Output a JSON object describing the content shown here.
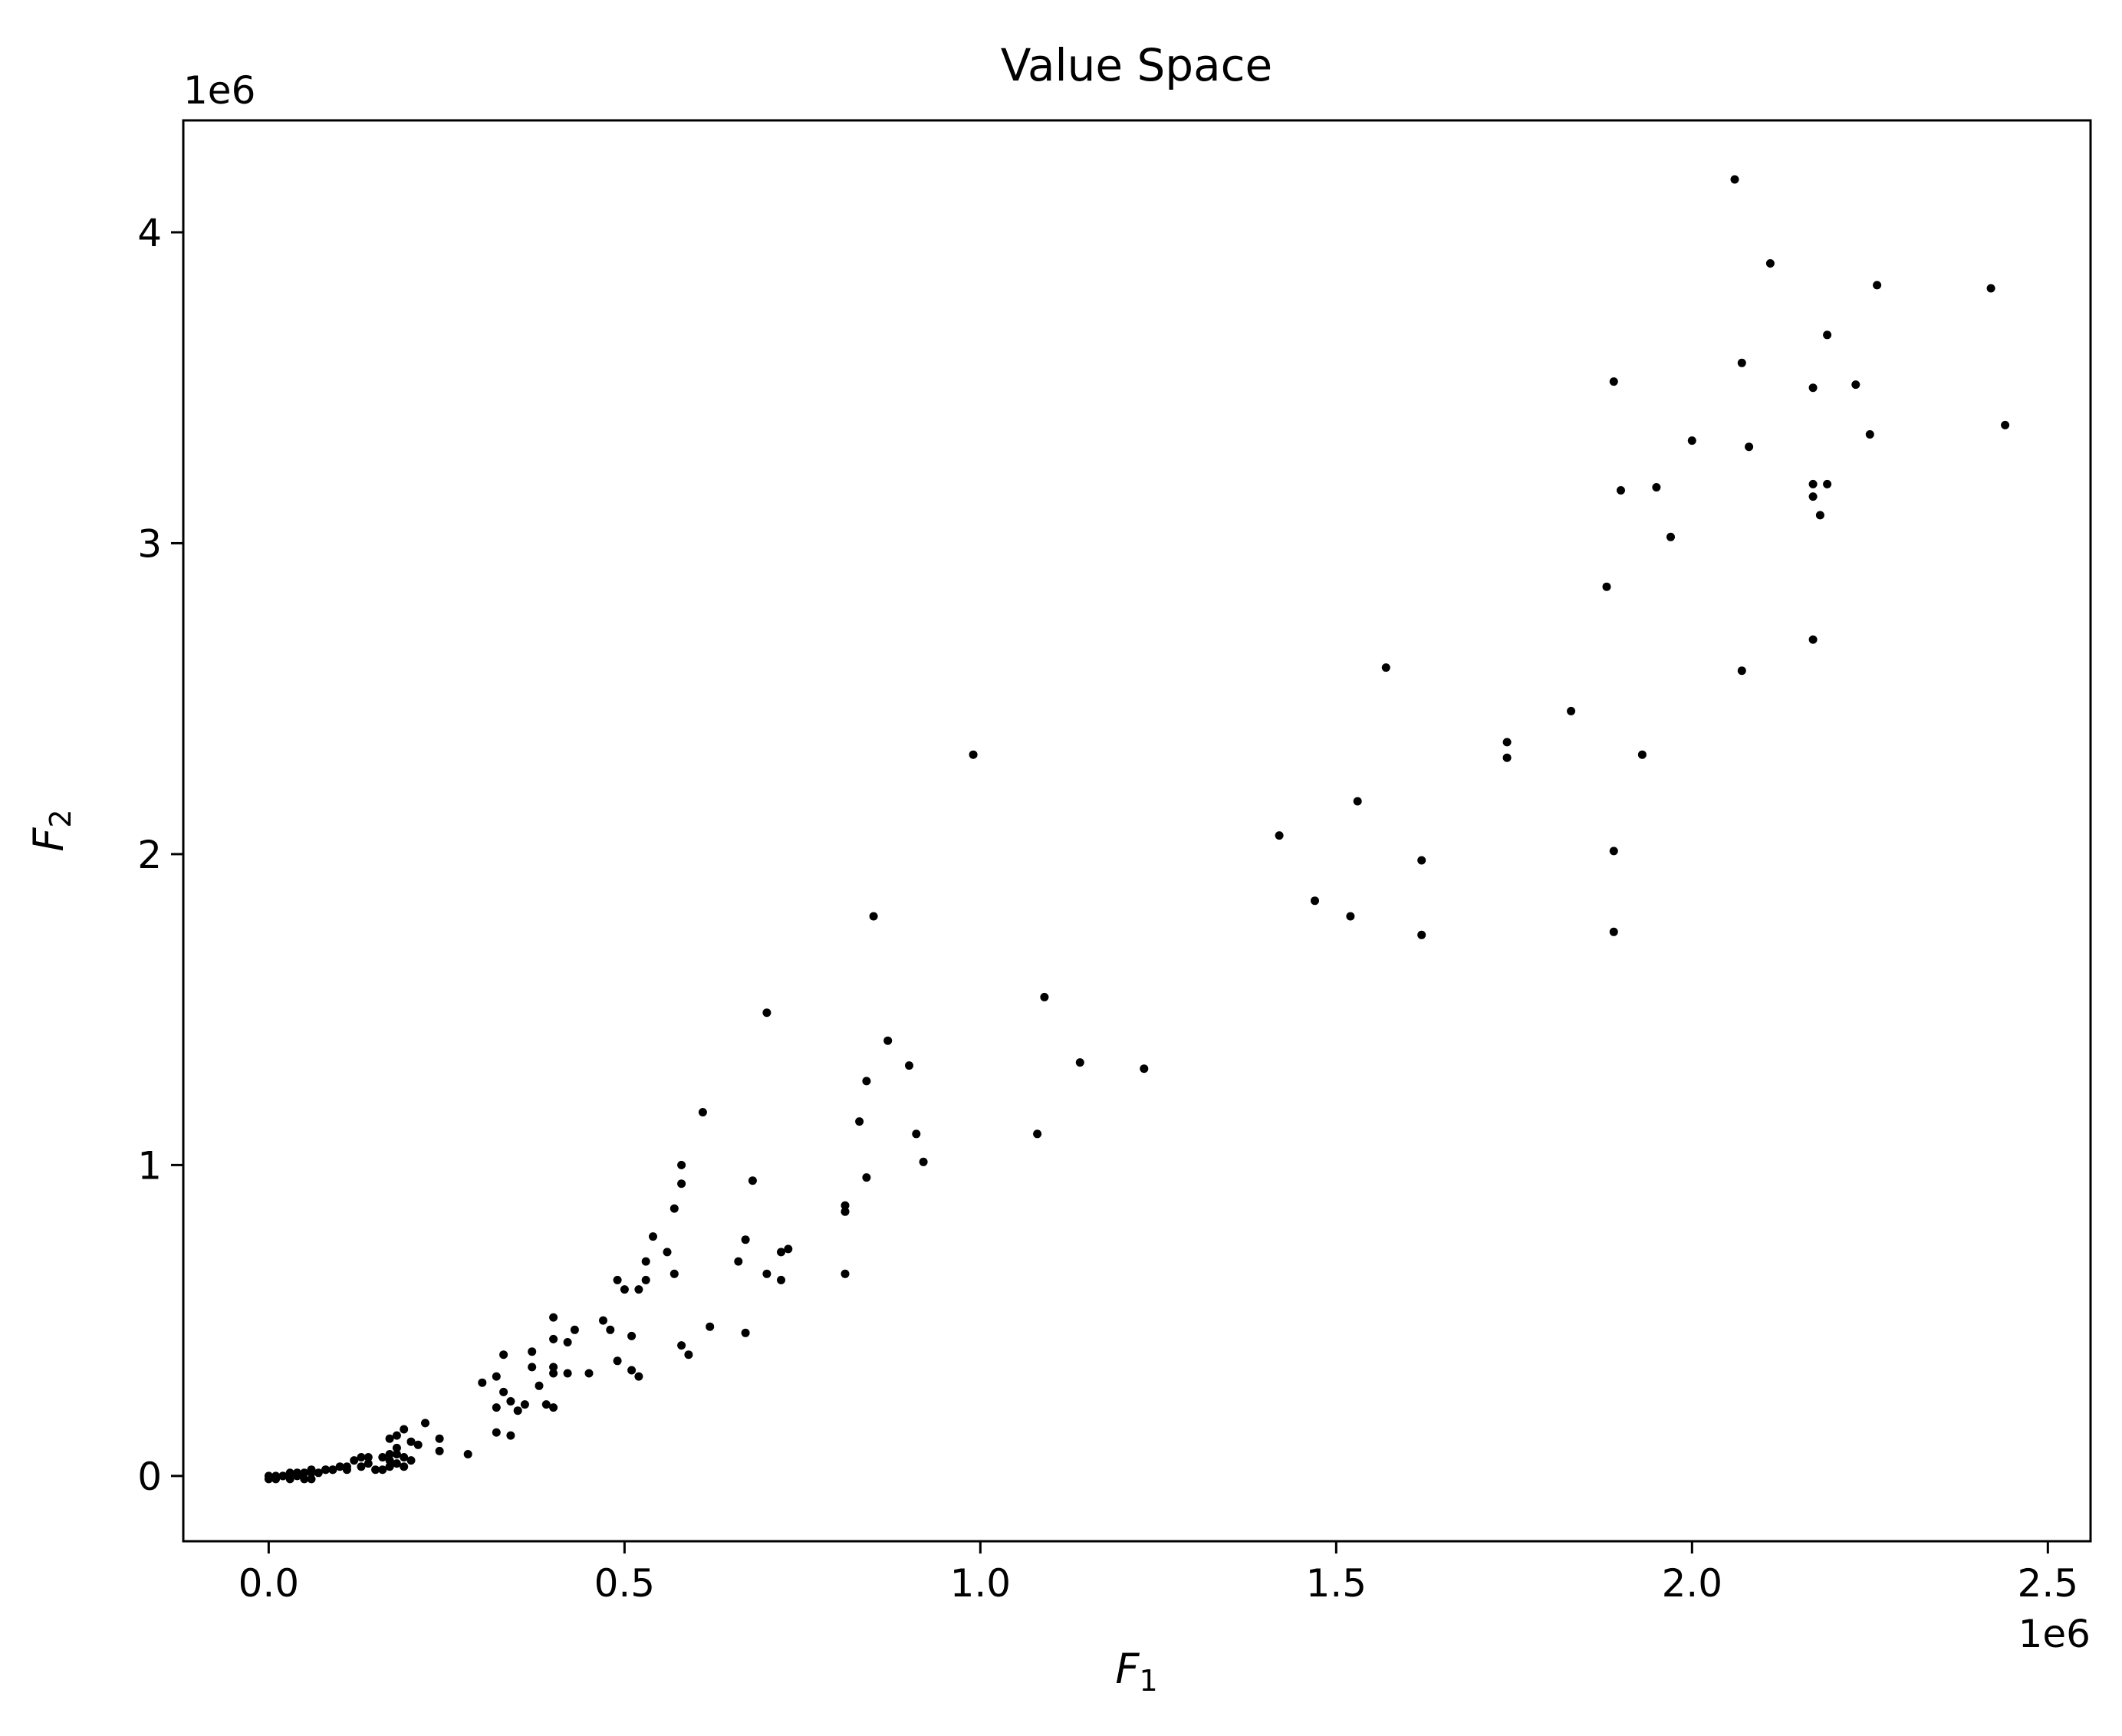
{
  "chart_data": {
    "type": "scatter",
    "title": "Value Space",
    "xlabel": "F",
    "xlabel_sub": "1",
    "ylabel": "F",
    "ylabel_sub": "2",
    "x_offset_text": "1e6",
    "y_offset_text": "1e6",
    "xlim": [
      -120000,
      2560000
    ],
    "ylim": [
      -210000,
      4360000
    ],
    "x_ticks": [
      0,
      500000,
      1000000,
      1500000,
      2000000,
      2500000
    ],
    "x_tick_labels": [
      "0.0",
      "0.5",
      "1.0",
      "1.5",
      "2.0",
      "2.5"
    ],
    "y_ticks": [
      0,
      1000000,
      2000000,
      3000000,
      4000000
    ],
    "y_tick_labels": [
      "0",
      "1",
      "2",
      "3",
      "4"
    ],
    "grid": false,
    "legend": "none",
    "marker_color": "#000000",
    "points": [
      [
        2060000,
        4170000
      ],
      [
        2110000,
        3900000
      ],
      [
        2260000,
        3830000
      ],
      [
        2420000,
        3820000
      ],
      [
        2190000,
        3670000
      ],
      [
        2070000,
        3580000
      ],
      [
        1890000,
        3520000
      ],
      [
        2230000,
        3510000
      ],
      [
        2170000,
        3500000
      ],
      [
        2440000,
        3380000
      ],
      [
        2250000,
        3350000
      ],
      [
        2000000,
        3330000
      ],
      [
        2080000,
        3310000
      ],
      [
        2170000,
        3190000
      ],
      [
        2190000,
        3190000
      ],
      [
        1950000,
        3180000
      ],
      [
        1900000,
        3170000
      ],
      [
        2170000,
        3150000
      ],
      [
        2180000,
        3090000
      ],
      [
        1970000,
        3020000
      ],
      [
        1880000,
        2860000
      ],
      [
        2170000,
        2690000
      ],
      [
        1570000,
        2600000
      ],
      [
        2070000,
        2590000
      ],
      [
        1830000,
        2460000
      ],
      [
        1740000,
        2360000
      ],
      [
        1740000,
        2310000
      ],
      [
        990000,
        2320000
      ],
      [
        1930000,
        2320000
      ],
      [
        1530000,
        2170000
      ],
      [
        1420000,
        2060000
      ],
      [
        1890000,
        2010000
      ],
      [
        1620000,
        1980000
      ],
      [
        1470000,
        1850000
      ],
      [
        850000,
        1800000
      ],
      [
        1520000,
        1800000
      ],
      [
        1890000,
        1750000
      ],
      [
        1620000,
        1740000
      ],
      [
        1090000,
        1540000
      ],
      [
        700000,
        1490000
      ],
      [
        870000,
        1400000
      ],
      [
        1140000,
        1330000
      ],
      [
        900000,
        1320000
      ],
      [
        1230000,
        1310000
      ],
      [
        840000,
        1270000
      ],
      [
        610000,
        1170000
      ],
      [
        830000,
        1140000
      ],
      [
        910000,
        1100000
      ],
      [
        1080000,
        1100000
      ],
      [
        920000,
        1010000
      ],
      [
        580000,
        1000000
      ],
      [
        840000,
        960000
      ],
      [
        680000,
        950000
      ],
      [
        580000,
        940000
      ],
      [
        570000,
        860000
      ],
      [
        810000,
        870000
      ],
      [
        810000,
        850000
      ],
      [
        540000,
        770000
      ],
      [
        670000,
        760000
      ],
      [
        560000,
        720000
      ],
      [
        730000,
        730000
      ],
      [
        720000,
        720000
      ],
      [
        660000,
        690000
      ],
      [
        530000,
        690000
      ],
      [
        570000,
        650000
      ],
      [
        700000,
        650000
      ],
      [
        810000,
        650000
      ],
      [
        720000,
        630000
      ],
      [
        490000,
        630000
      ],
      [
        530000,
        630000
      ],
      [
        500000,
        600000
      ],
      [
        520000,
        600000
      ],
      [
        400000,
        510000
      ],
      [
        470000,
        500000
      ],
      [
        430000,
        470000
      ],
      [
        480000,
        470000
      ],
      [
        620000,
        480000
      ],
      [
        670000,
        460000
      ],
      [
        400000,
        440000
      ],
      [
        420000,
        430000
      ],
      [
        510000,
        450000
      ],
      [
        580000,
        420000
      ],
      [
        370000,
        400000
      ],
      [
        330000,
        390000
      ],
      [
        590000,
        390000
      ],
      [
        490000,
        370000
      ],
      [
        400000,
        350000
      ],
      [
        400000,
        330000
      ],
      [
        370000,
        350000
      ],
      [
        450000,
        330000
      ],
      [
        420000,
        330000
      ],
      [
        510000,
        340000
      ],
      [
        320000,
        320000
      ],
      [
        520000,
        320000
      ],
      [
        300000,
        300000
      ],
      [
        380000,
        290000
      ],
      [
        330000,
        270000
      ],
      [
        350000,
        210000
      ],
      [
        360000,
        230000
      ],
      [
        340000,
        240000
      ],
      [
        320000,
        220000
      ],
      [
        390000,
        230000
      ],
      [
        400000,
        220000
      ],
      [
        320000,
        140000
      ],
      [
        340000,
        130000
      ],
      [
        220000,
        170000
      ],
      [
        190000,
        150000
      ],
      [
        170000,
        120000
      ],
      [
        240000,
        120000
      ],
      [
        210000,
        100000
      ],
      [
        240000,
        80000
      ],
      [
        280000,
        70000
      ],
      [
        180000,
        70000
      ],
      [
        190000,
        60000
      ],
      [
        130000,
        60000
      ],
      [
        170000,
        50000
      ],
      [
        140000,
        40000
      ],
      [
        120000,
        50000
      ],
      [
        100000,
        30000
      ],
      [
        190000,
        30000
      ],
      [
        160000,
        20000
      ],
      [
        150000,
        20000
      ],
      [
        110000,
        20000
      ],
      [
        80000,
        20000
      ],
      [
        60000,
        10000
      ],
      [
        50000,
        10000
      ],
      [
        40000,
        0
      ],
      [
        20000,
        0
      ],
      [
        10000,
        0
      ],
      [
        0,
        0
      ],
      [
        30000,
        10000
      ],
      [
        70000,
        10000
      ],
      [
        90000,
        20000
      ],
      [
        130000,
        30000
      ],
      [
        180000,
        40000
      ],
      [
        200000,
        50000
      ],
      [
        170000,
        30000
      ],
      [
        160000,
        60000
      ],
      [
        60000,
        -10000
      ],
      [
        50000,
        -10000
      ],
      [
        10000,
        -10000
      ],
      [
        30000,
        -10000
      ],
      [
        180000,
        90000
      ],
      [
        200000,
        110000
      ],
      [
        180000,
        130000
      ],
      [
        90000,
        20000
      ],
      [
        60000,
        20000
      ],
      [
        110000,
        30000
      ],
      [
        140000,
        60000
      ],
      [
        170000,
        70000
      ],
      [
        80000,
        20000
      ],
      [
        20000,
        0
      ],
      [
        40000,
        10000
      ],
      [
        0,
        -10000
      ]
    ]
  }
}
